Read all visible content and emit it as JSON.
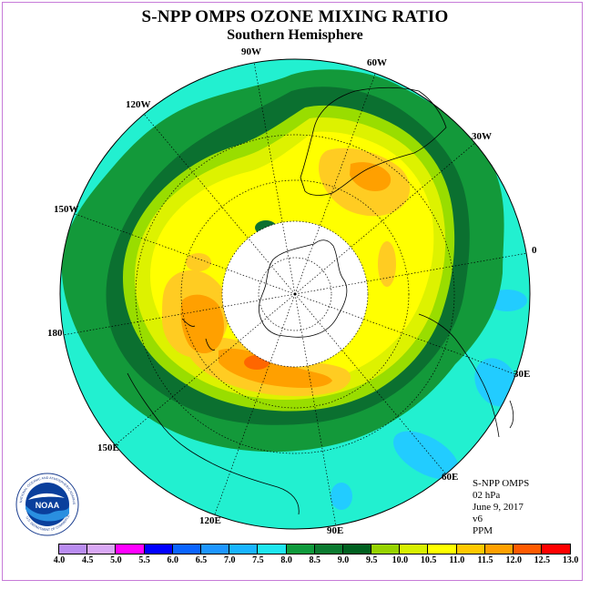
{
  "title": "S-NPP OMPS OZONE MIXING RATIO",
  "subtitle": "Southern Hemisphere",
  "longitude_labels": [
    "90W",
    "60W",
    "30W",
    "0",
    "30E",
    "60E",
    "90E",
    "120E",
    "150E",
    "180",
    "150W",
    "120W"
  ],
  "info": {
    "instrument": "S-NPP OMPS",
    "level": "02 hPa",
    "date": "June 9, 2017",
    "version": "v6",
    "units": "PPM"
  },
  "logo": {
    "name": "NOAA",
    "ring_text": "NATIONAL OCEANIC AND ATMOSPHERIC ADMINISTRATION",
    "ring_text_bottom": "U.S. DEPARTMENT OF COMMERCE"
  },
  "colorbar": {
    "ticks": [
      "4.0",
      "4.5",
      "5.0",
      "5.5",
      "6.0",
      "6.5",
      "7.0",
      "7.5",
      "8.0",
      "8.5",
      "9.0",
      "9.5",
      "10.0",
      "10.5",
      "11.0",
      "11.5",
      "12.0",
      "12.5",
      "13.0"
    ],
    "colors": [
      "#b98cf0",
      "#d9a8f5",
      "#ff00ff",
      "#0000ff",
      "#0a64ff",
      "#1e96ff",
      "#19b4ff",
      "#1ee6f0",
      "#0f9a3c",
      "#0b7a30",
      "#006020",
      "#96d200",
      "#d7f000",
      "#ffff00",
      "#ffc800",
      "#ffa000",
      "#ff5a00",
      "#ff0000",
      "#8b5a2b"
    ]
  },
  "map": {
    "projection": "polar-stereographic",
    "hemisphere": "south",
    "colors": {
      "cyan": "#22f0d0",
      "lightblue": "#22ccff",
      "green": "#13993a",
      "darkgreen": "#0b7030",
      "lime": "#99dd00",
      "yellowgreen": "#ddf200",
      "yellow": "#ffff00",
      "lightorange": "#ffcc22",
      "orange": "#ffa000",
      "darkorange": "#ff6600",
      "nodata": "#ffffff"
    }
  }
}
